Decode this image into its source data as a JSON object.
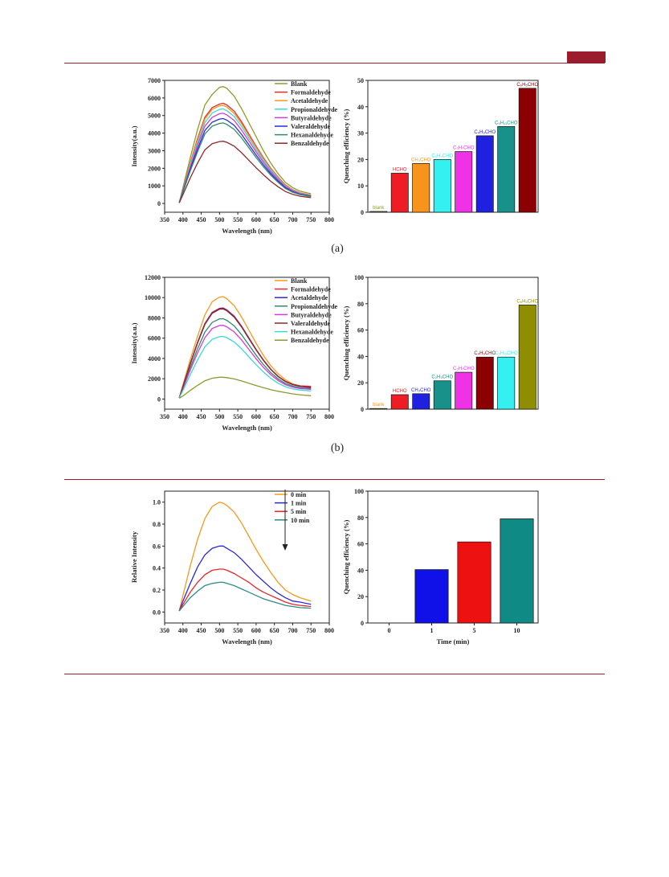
{
  "page": {
    "panel_a_label": "(a)",
    "panel_b_label": "(b)",
    "accent_color": "#9b1c2c"
  },
  "chart_data": [
    {
      "id": "a-spectra",
      "type": "line",
      "xlabel": "Wavelength (nm)",
      "ylabel": "Intensity(a.u.)",
      "xlim": [
        350,
        800
      ],
      "ylim": [
        -500,
        7000
      ],
      "xticks": [
        350,
        400,
        450,
        500,
        550,
        600,
        650,
        700,
        750,
        800
      ],
      "yticks": [
        0,
        1000,
        2000,
        3000,
        4000,
        5000,
        6000,
        7000
      ],
      "legend": "top-right",
      "x": [
        390,
        400,
        420,
        440,
        460,
        480,
        500,
        510,
        520,
        540,
        560,
        580,
        600,
        620,
        640,
        660,
        680,
        700,
        720,
        750
      ],
      "series": [
        {
          "name": "Blank",
          "color": "#8e9a2e",
          "values": [
            50,
            900,
            2600,
            4200,
            5600,
            6200,
            6600,
            6650,
            6550,
            6100,
            5400,
            4600,
            3800,
            3000,
            2300,
            1700,
            1200,
            900,
            700,
            550
          ]
        },
        {
          "name": "Formaldehyde",
          "color": "#e8262b",
          "values": [
            40,
            800,
            2300,
            3700,
            4900,
            5450,
            5650,
            5700,
            5600,
            5250,
            4650,
            3950,
            3250,
            2600,
            2000,
            1500,
            1050,
            780,
            600,
            480
          ]
        },
        {
          "name": "Acetaldehyde",
          "color": "#f39a1f",
          "values": [
            40,
            780,
            2250,
            3600,
            4800,
            5350,
            5550,
            5580,
            5480,
            5120,
            4540,
            3860,
            3180,
            2540,
            1960,
            1460,
            1020,
            760,
            590,
            470
          ]
        },
        {
          "name": "Propionaldehyde",
          "color": "#3bd8d8",
          "values": [
            40,
            750,
            2150,
            3450,
            4600,
            5150,
            5350,
            5380,
            5280,
            4940,
            4380,
            3720,
            3060,
            2450,
            1890,
            1410,
            990,
            740,
            570,
            450
          ]
        },
        {
          "name": "Butyraldehyde",
          "color": "#d63bd6",
          "values": [
            40,
            720,
            2050,
            3300,
            4400,
            4900,
            5100,
            5130,
            5040,
            4720,
            4180,
            3560,
            2930,
            2340,
            1800,
            1350,
            950,
            710,
            550,
            430
          ]
        },
        {
          "name": "Valeraldehyde",
          "color": "#2a2ad8",
          "values": [
            40,
            680,
            1950,
            3100,
            4150,
            4620,
            4800,
            4830,
            4740,
            4440,
            3930,
            3340,
            2750,
            2200,
            1700,
            1270,
            890,
            670,
            520,
            410
          ]
        },
        {
          "name": "Hexanaldehyde",
          "color": "#2e8b6e",
          "values": [
            40,
            650,
            1850,
            2950,
            3950,
            4400,
            4550,
            4580,
            4500,
            4210,
            3730,
            3170,
            2610,
            2090,
            1610,
            1200,
            850,
            640,
            500,
            390
          ]
        },
        {
          "name": "Benzaldehyde",
          "color": "#8a2a2a",
          "values": [
            30,
            500,
            1450,
            2300,
            3050,
            3400,
            3520,
            3540,
            3480,
            3260,
            2890,
            2460,
            2030,
            1630,
            1260,
            950,
            680,
            520,
            410,
            330
          ]
        }
      ]
    },
    {
      "id": "a-bars",
      "type": "bar",
      "ylabel": "Quenching efficiency (%)",
      "ylim": [
        0,
        50
      ],
      "yticks": [
        0,
        10,
        20,
        30,
        40,
        50
      ],
      "categories": [
        "blank",
        "HCHO",
        "CH₃CHO",
        "C₂H₅CHO",
        "C₃H₇CHO",
        "C₄H₉CHO",
        "C₅H₁₁CHO",
        "C₆H₅CHO"
      ],
      "values": [
        0.3,
        14.8,
        18.5,
        20,
        23,
        29,
        32.5,
        47
      ],
      "colors": [
        "#8e9a2e",
        "#ee1c24",
        "#f7941d",
        "#35f0f0",
        "#f032e6",
        "#2020e0",
        "#18918a",
        "#8b0000"
      ]
    },
    {
      "id": "b-spectra",
      "type": "line",
      "xlabel": "Wavelength (nm)",
      "ylabel": "Intensity(a.u.)",
      "xlim": [
        350,
        800
      ],
      "ylim": [
        -1000,
        12000
      ],
      "xticks": [
        350,
        400,
        450,
        500,
        550,
        600,
        650,
        700,
        750,
        800
      ],
      "yticks": [
        0,
        2000,
        4000,
        6000,
        8000,
        10000,
        12000
      ],
      "legend": "top-right",
      "x": [
        390,
        400,
        420,
        440,
        460,
        480,
        500,
        510,
        520,
        540,
        560,
        580,
        600,
        620,
        640,
        660,
        680,
        700,
        720,
        750
      ],
      "series": [
        {
          "name": "Blank",
          "color": "#f39a1f",
          "values": [
            100,
            1400,
            3900,
            6200,
            8300,
            9600,
            10050,
            10100,
            9900,
            9200,
            8100,
            6800,
            5500,
            4300,
            3300,
            2500,
            1900,
            1500,
            1300,
            1100
          ]
        },
        {
          "name": "Formaldehyde",
          "color": "#e8262b",
          "values": [
            100,
            1250,
            3500,
            5600,
            7450,
            8550,
            8950,
            8980,
            8800,
            8180,
            7200,
            6050,
            4900,
            3850,
            2950,
            2250,
            1750,
            1450,
            1300,
            1250
          ]
        },
        {
          "name": "Acetaldehyde",
          "color": "#2a2ad8",
          "values": [
            100,
            1240,
            3480,
            5550,
            7400,
            8500,
            8900,
            8930,
            8750,
            8130,
            7150,
            6000,
            4860,
            3820,
            2930,
            2230,
            1720,
            1420,
            1250,
            1100
          ]
        },
        {
          "name": "Propionaldehyde",
          "color": "#2e8b6e",
          "values": [
            100,
            1100,
            3100,
            4950,
            6600,
            7550,
            7900,
            7920,
            7760,
            7220,
            6350,
            5340,
            4330,
            3400,
            2610,
            1990,
            1540,
            1270,
            1120,
            1000
          ]
        },
        {
          "name": "Butyraldehyde",
          "color": "#d63bd6",
          "values": [
            100,
            1000,
            2850,
            4550,
            6050,
            6950,
            7250,
            7270,
            7120,
            6620,
            5830,
            4900,
            3970,
            3120,
            2400,
            1830,
            1420,
            1170,
            1040,
            950
          ]
        },
        {
          "name": "Valeraldehyde",
          "color": "#8a2a2a",
          "values": [
            100,
            1230,
            3450,
            5520,
            7350,
            8450,
            8850,
            8880,
            8700,
            8080,
            7110,
            5970,
            4840,
            3800,
            2920,
            2220,
            1720,
            1420,
            1260,
            1150
          ]
        },
        {
          "name": "Hexanaldehyde",
          "color": "#3bd8d8",
          "values": [
            100,
            850,
            2400,
            3850,
            5150,
            5900,
            6150,
            6170,
            6050,
            5630,
            4960,
            4170,
            3380,
            2660,
            2040,
            1560,
            1210,
            1000,
            890,
            800
          ]
        },
        {
          "name": "Benzaldehyde",
          "color": "#8e9a2e",
          "values": [
            80,
            300,
            850,
            1350,
            1800,
            2050,
            2150,
            2150,
            2110,
            1980,
            1780,
            1560,
            1330,
            1120,
            930,
            770,
            630,
            510,
            420,
            320
          ]
        }
      ]
    },
    {
      "id": "b-bars",
      "type": "bar",
      "ylabel": "Quenching efficiency (%)",
      "ylim": [
        0,
        100
      ],
      "yticks": [
        0,
        20,
        40,
        60,
        80,
        100
      ],
      "categories": [
        "blank",
        "HCHO",
        "CH₃CHO",
        "C₂H₅CHO",
        "C₃H₇CHO",
        "C₄H₉CHO",
        "C₅H₁₁CHO",
        "C₆H₅CHO"
      ],
      "values": [
        0.5,
        11,
        11.7,
        21.5,
        28,
        39.5,
        39.5,
        79
      ],
      "colors": [
        "#f7941d",
        "#ee1c24",
        "#2020e0",
        "#18918a",
        "#f032e6",
        "#8b0000",
        "#35f0f0",
        "#8e8e00"
      ]
    },
    {
      "id": "c-spectra",
      "type": "line",
      "xlabel": "Wavelength (nm)",
      "ylabel": "Relative Intensity",
      "xlim": [
        350,
        800
      ],
      "ylim": [
        -0.1,
        1.1
      ],
      "xticks": [
        350,
        400,
        450,
        500,
        550,
        600,
        650,
        700,
        750,
        800
      ],
      "yticks": [
        0.0,
        0.2,
        0.4,
        0.6,
        0.8,
        1.0
      ],
      "legend": "top-right",
      "x": [
        390,
        400,
        420,
        440,
        460,
        480,
        500,
        510,
        520,
        540,
        560,
        580,
        600,
        620,
        640,
        660,
        680,
        700,
        720,
        750
      ],
      "series": [
        {
          "name": "0 min",
          "color": "#f39a1f",
          "values": [
            0.01,
            0.15,
            0.42,
            0.66,
            0.85,
            0.96,
            1.0,
            0.99,
            0.97,
            0.91,
            0.81,
            0.69,
            0.57,
            0.46,
            0.36,
            0.27,
            0.2,
            0.16,
            0.13,
            0.1
          ]
        },
        {
          "name": "1 min",
          "color": "#2a2ad8",
          "values": [
            0.01,
            0.1,
            0.26,
            0.41,
            0.52,
            0.58,
            0.6,
            0.6,
            0.58,
            0.54,
            0.48,
            0.41,
            0.34,
            0.28,
            0.22,
            0.17,
            0.13,
            0.1,
            0.09,
            0.07
          ]
        },
        {
          "name": "5 min",
          "color": "#e8262b",
          "values": [
            0.01,
            0.07,
            0.18,
            0.27,
            0.34,
            0.38,
            0.39,
            0.39,
            0.38,
            0.35,
            0.31,
            0.27,
            0.22,
            0.18,
            0.15,
            0.12,
            0.09,
            0.07,
            0.06,
            0.05
          ]
        },
        {
          "name": "10 min",
          "color": "#2e8b8a",
          "values": [
            0.01,
            0.05,
            0.13,
            0.19,
            0.24,
            0.26,
            0.27,
            0.27,
            0.26,
            0.24,
            0.21,
            0.18,
            0.15,
            0.12,
            0.1,
            0.08,
            0.06,
            0.05,
            0.04,
            0.035
          ]
        }
      ]
    },
    {
      "id": "c-bars",
      "type": "bar",
      "xlabel": "Time (min)",
      "ylabel": "Quenching efficiency (%)",
      "ylim": [
        0,
        100
      ],
      "yticks": [
        0,
        20,
        40,
        60,
        80,
        100
      ],
      "categories": [
        "0",
        "1",
        "5",
        "10"
      ],
      "values": [
        0,
        40.5,
        61.5,
        79
      ],
      "colors": [
        "#ffffff",
        "#1010e8",
        "#ee1111",
        "#108a84"
      ]
    }
  ]
}
